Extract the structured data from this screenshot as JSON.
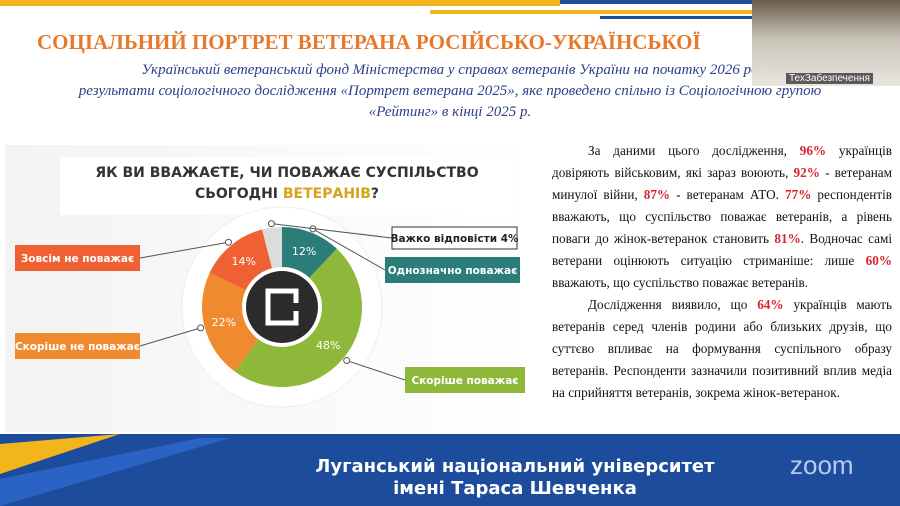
{
  "header": {
    "title": "СОЦІАЛЬНИЙ ПОРТРЕТ ВЕТЕРАНА РОСІЙСЬКО-УКРАЇНСЬКОЇ",
    "subtitle": [
      "Український ветеранський фонд Міністерства у справах ветеранів України на початку 2026 ро",
      "результати соціологічного дослідження «Портрет ветерана 2025», яке проведено спільно із Соціологічною групою",
      "«Рейтинг» в кінці 2025 р."
    ]
  },
  "video": {
    "participant": "ТехЗабезпечення"
  },
  "chart_data": {
    "type": "donut",
    "title": [
      "ЯК ВИ ВВАЖАЄТЕ, ЧИ ПОВАЖАЄ СУСПІЛЬСТВО",
      "СЬОГОДНІ ",
      "ВЕТЕРАНІВ",
      "?"
    ],
    "categories": [
      "Однозначно поважає",
      "Скоріше поважає",
      "Скоріше не поважає",
      "Зовсім не поважає",
      "Важко відповісти"
    ],
    "values": [
      12,
      48,
      22,
      14,
      4
    ],
    "value_labels": [
      "12%",
      "48%",
      "22%",
      "14%",
      "4%"
    ],
    "colors": [
      "#2b7d7a",
      "#8db83a",
      "#f08a2e",
      "#ef6033",
      "#dcdcdc"
    ]
  },
  "text": {
    "paragraphs": [
      [
        "За даними цього дослідження, ",
        {
          "text": "96%",
          "highlight": true
        },
        " українців довіряють військовим, які зараз воюють, ",
        {
          "text": "92%",
          "highlight": true
        },
        " - ветеранам минулої війни, ",
        {
          "text": "87%",
          "highlight": true
        },
        " - ветеранам АТО. ",
        {
          "text": "77%",
          "highlight": true
        },
        " респондентів вважають, що суспільство поважає ветеранів, а рівень поваги до жінок-ветеранок становить ",
        {
          "text": "81%",
          "highlight": true
        },
        ". Водночас самі ветерани оцінюють ситуацію стриманіше: лише ",
        {
          "text": "60%",
          "highlight": true
        },
        " вважають, що суспільство поважає ветеранів."
      ],
      [
        "Дослідження виявило, що ",
        {
          "text": "64%",
          "highlight": true
        },
        " українців мають ветеранів серед членів родини або близьких друзів, що суттєво впливає на формування суспільного образу ветеранів. Респонденти зазначили позитивний вплив медіа на сприйняття ветеранів, зокрема жінок-ветеранок."
      ]
    ]
  },
  "footer": {
    "lines": [
      "Луганський національний університет",
      "імені Тараса Шевченка"
    ],
    "app": "zoom"
  }
}
